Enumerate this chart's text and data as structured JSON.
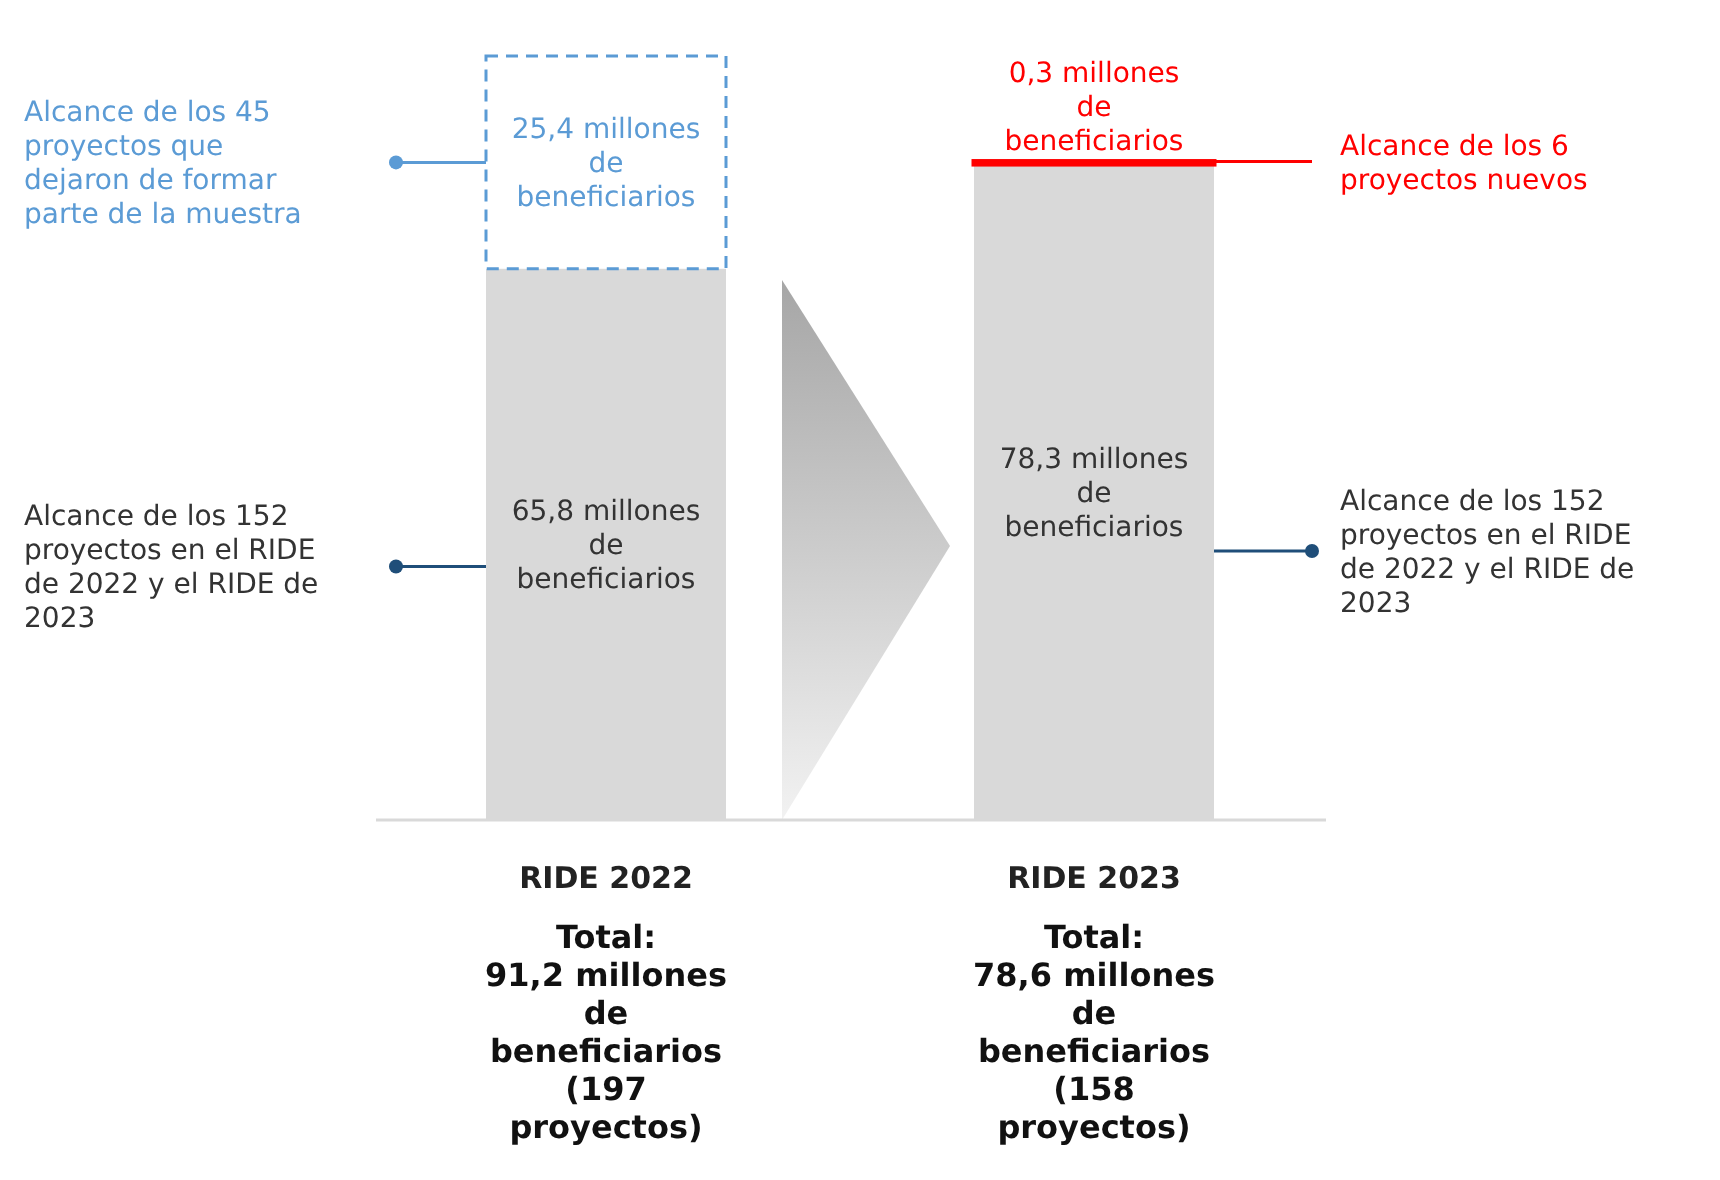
{
  "chart_data": {
    "type": "bar",
    "stacked": true,
    "categories": [
      "RIDE 2022",
      "RIDE 2023"
    ],
    "series": [
      {
        "color": "#d9d9d9",
        "values": [
          65.8,
          78.3
        ],
        "value_labels": [
          "65,8 millones de beneficiarios",
          "78,3 millones de beneficiarios"
        ]
      },
      {
        "color": "#5b9bd5",
        "line_style": "dashed",
        "values": [
          25.4,
          null
        ],
        "value_labels": [
          "25,4 millones de beneficiarios",
          null
        ]
      },
      {
        "color": "#ff0000",
        "values": [
          null,
          0.3
        ],
        "value_labels": [
          null,
          "0,3 millones de beneficiarios"
        ]
      }
    ],
    "annotations": [
      "Alcance de los 45 proyectos que dejaron de formar parte de la muestra",
      "Alcance de los 152 proyectos en el RIDE de 2022 y el RIDE de 2023",
      "Alcance de los 6 proyectos nuevos",
      "Alcance de los 152 proyectos en el RIDE de 2022 y el RIDE de 2023",
      "Total:\n91,2 millones de beneficiarios\n(197 proyectos)",
      "Total:\n78,6 millones de beneficiarios\n(158 proyectos)"
    ]
  }
}
